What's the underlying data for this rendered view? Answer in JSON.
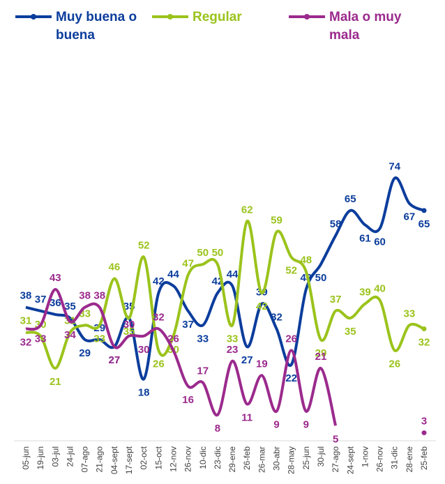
{
  "chart_data": {
    "type": "line",
    "categories": [
      "05-jun",
      "19-jun",
      "03-jul",
      "24-jul",
      "07-ago",
      "21-ago",
      "04-sept",
      "17-sept",
      "02-oct",
      "15-oct",
      "12-nov",
      "26-nov",
      "10-dic",
      "23-dic",
      "29-ene",
      "26-feb",
      "26-mar",
      "30-abr",
      "28-may",
      "25-jun",
      "30-jul",
      "27-ago",
      "24-sept",
      "1-nov",
      "26-nov",
      "31-dic",
      "28-ene",
      "25-feb"
    ],
    "series": [
      {
        "name": "Muy buena o buena",
        "color": "#0b3d9c",
        "values": [
          38,
          37,
          36,
          35,
          29,
          29,
          27,
          35,
          18,
          42,
          44,
          37,
          33,
          42,
          44,
          27,
          39,
          32,
          22,
          43,
          50,
          58,
          65,
          61,
          60,
          74,
          67,
          65
        ]
      },
      {
        "name": "Regular",
        "color": "#9bc31c",
        "values": [
          31,
          30,
          21,
          31,
          33,
          33,
          46,
          35,
          52,
          26,
          30,
          47,
          50,
          50,
          33,
          62,
          42,
          59,
          52,
          48,
          29,
          37,
          35,
          39,
          40,
          26,
          33,
          32
        ]
      },
      {
        "name": "Mala o muy mala",
        "color": "#9b2a8d",
        "values": [
          32,
          33,
          43,
          34,
          38,
          38,
          27,
          30,
          30,
          32,
          26,
          16,
          17,
          8,
          23,
          11,
          19,
          9,
          26,
          9,
          21,
          5,
          null,
          null,
          null,
          null,
          null,
          3
        ]
      }
    ]
  }
}
